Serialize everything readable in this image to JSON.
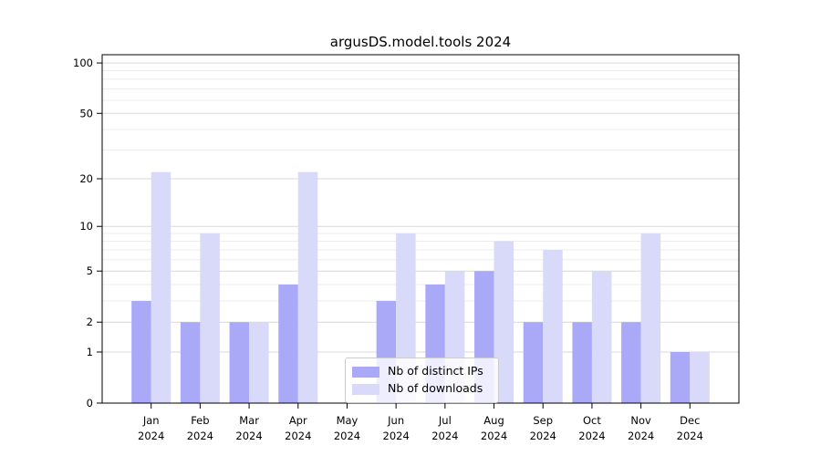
{
  "chart_data": {
    "type": "bar",
    "title": "argusDS.model.tools 2024",
    "categories": [
      "Jan 2024",
      "Feb 2024",
      "Mar 2024",
      "Apr 2024",
      "May 2024",
      "Jun 2024",
      "Jul 2024",
      "Aug 2024",
      "Sep 2024",
      "Oct 2024",
      "Nov 2024",
      "Dec 2024"
    ],
    "series": [
      {
        "name": "Nb of distinct IPs",
        "color": "#a9a9f8",
        "values": [
          3,
          2,
          2,
          4,
          0,
          3,
          4,
          5,
          2,
          2,
          2,
          1
        ]
      },
      {
        "name": "Nb of downloads",
        "color": "#d9d9fa",
        "values": [
          22,
          9,
          2,
          22,
          0,
          9,
          5,
          8,
          7,
          5,
          9,
          1
        ]
      }
    ],
    "xlabel": "",
    "ylabel": "",
    "yscale": "log1p",
    "ylim": [
      0,
      112
    ],
    "yticks": [
      0,
      1,
      2,
      5,
      10,
      20,
      50,
      100
    ],
    "minor_yticks": [
      3,
      4,
      6,
      7,
      8,
      9,
      30,
      40,
      60,
      70,
      80,
      90
    ],
    "grid": true,
    "legend": {
      "entries": [
        "Nb of distinct IPs",
        "Nb of downloads"
      ],
      "position": "lower-center-inside"
    }
  },
  "style_colors": {
    "bar_distinct_ips": "#a9a9f8",
    "bar_downloads": "#d9d9fa",
    "major_gridline": "#d9d9d9",
    "minor_gridline": "#ededed",
    "spine": "#000000"
  }
}
